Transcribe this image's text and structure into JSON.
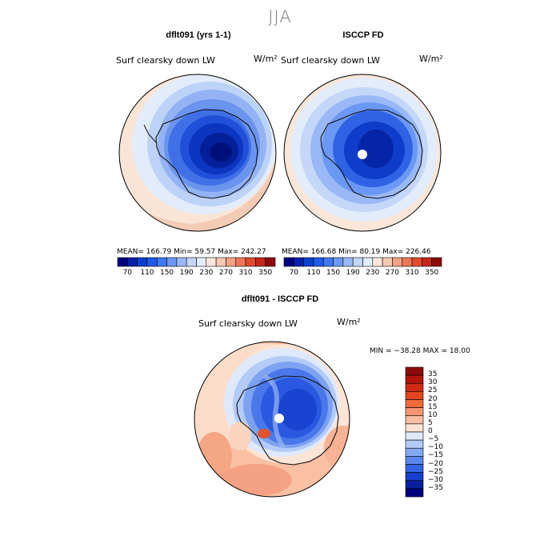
{
  "figure": {
    "season": "JJA",
    "panels": [
      {
        "title": "dflt091 (yrs 1-1)",
        "variable": "Surf clearsky down LW",
        "units": "W/m²",
        "mean": "166.79",
        "min": "59.57",
        "max": "242.27",
        "stats_text": "MEAN= 166.79   Min=  59.57   Max= 242.27"
      },
      {
        "title": "ISCCP FD",
        "variable": "Surf clearsky down LW",
        "units": "W/m²",
        "mean": "166.68",
        "min": "80.19",
        "max": "226.46",
        "stats_text": "MEAN= 166.68   Min=  80.19   Max= 226.46"
      },
      {
        "title": "dflt091 - ISCCP FD",
        "variable": "Surf clearsky down LW",
        "units": "W/m²",
        "min": "-38.28",
        "max": "18.00",
        "stats_text": "MIN = −38.28  MAX =   18.00"
      }
    ],
    "colorbar1": {
      "labels": [
        "70",
        "110",
        "150",
        "190",
        "230",
        "270",
        "310",
        "350"
      ],
      "colors": [
        "#00007f",
        "#0520a8",
        "#0a3fd0",
        "#1f5ae8",
        "#3f78f0",
        "#6b98f4",
        "#9ab8f6",
        "#c4d7f8",
        "#e3ecfa",
        "#fbe7dc",
        "#f7c9b2",
        "#f3a286",
        "#ec7657",
        "#e04b2e",
        "#c4261a",
        "#8c0a0a"
      ]
    },
    "colorbar2": {
      "labels": [
        "35",
        "30",
        "25",
        "20",
        "15",
        "10",
        "5",
        "0",
        "−5",
        "−10",
        "−15",
        "−20",
        "−25",
        "−30",
        "−35"
      ],
      "colors": [
        "#8c0a0a",
        "#b3150c",
        "#d02a14",
        "#e2451f",
        "#f06a3c",
        "#f59571",
        "#f9bea2",
        "#fde4d5",
        "#dfe9fb",
        "#b3cbf7",
        "#85a9f2",
        "#5a87ee",
        "#3563e6",
        "#173fce",
        "#08209e",
        "#00007f"
      ]
    }
  },
  "chart_data": [
    {
      "type": "heatmap",
      "projection": "south-polar-stereographic",
      "title": "dflt091 (yrs 1-1)",
      "subtitle": "Surf clearsky down LW",
      "units": "W/m^2",
      "mean": 166.79,
      "min": 59.57,
      "max": 242.27,
      "levels": [
        70,
        110,
        150,
        190,
        230,
        270,
        310,
        350
      ]
    },
    {
      "type": "heatmap",
      "projection": "south-polar-stereographic",
      "title": "ISCCP FD",
      "subtitle": "Surf clearsky down LW",
      "units": "W/m^2",
      "mean": 166.68,
      "min": 80.19,
      "max": 226.46,
      "levels": [
        70,
        110,
        150,
        190,
        230,
        270,
        310,
        350
      ]
    },
    {
      "type": "heatmap",
      "projection": "south-polar-stereographic",
      "title": "dflt091 - ISCCP FD",
      "subtitle": "Surf clearsky down LW",
      "units": "W/m^2",
      "min": -38.28,
      "max": 18.0,
      "levels": [
        -35,
        -30,
        -25,
        -20,
        -15,
        -10,
        -5,
        0,
        5,
        10,
        15,
        20,
        25,
        30,
        35
      ]
    }
  ]
}
